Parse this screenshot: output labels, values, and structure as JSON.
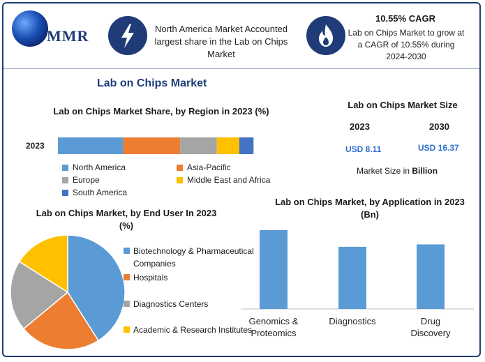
{
  "header": {
    "logo_text": "MMR",
    "highlight1": "North America Market Accounted largest share in the Lab on Chips Market",
    "cagr_title": "10.55% CAGR",
    "cagr_text": "Lab on Chips Market to grow at a CAGR of 10.55% during 2024-2030",
    "icon1": "lightning-bolt-icon",
    "icon2": "flame-icon"
  },
  "main_title": "Lab on Chips Market",
  "market_size": {
    "title": "Lab on Chips Market Size",
    "year1": "2023",
    "year2": "2030",
    "value1": "USD 8.11",
    "value2": "USD 16.37",
    "unit_prefix": "Market Size in ",
    "unit_bold": "Billion"
  },
  "chart_data": [
    {
      "type": "bar",
      "orientation": "horizontal",
      "stacked": true,
      "title": "Lab on Chips Market Share, by Region in 2023 (%)",
      "categories": [
        "2023"
      ],
      "series": [
        {
          "name": "North America",
          "values": [
            32
          ],
          "color": "#5b9bd5"
        },
        {
          "name": "Asia-Pacific",
          "values": [
            28
          ],
          "color": "#ed7d31"
        },
        {
          "name": "Europe",
          "values": [
            18
          ],
          "color": "#a5a5a5"
        },
        {
          "name": "Middle East and Africa",
          "values": [
            11
          ],
          "color": "#ffc000"
        },
        {
          "name": "South America",
          "values": [
            7
          ],
          "color": "#4472c4"
        }
      ],
      "xlim": [
        0,
        100
      ],
      "legend": "bottom"
    },
    {
      "type": "pie",
      "title": "Lab on Chips Market, by End User In 2023 (%)",
      "labels": [
        "Biotechnology & Pharmaceutical Companies",
        "Hospitals",
        "Diagnostics Centers",
        "Academic & Research Institutes"
      ],
      "values": [
        41,
        23,
        20,
        16
      ],
      "colors": [
        "#5b9bd5",
        "#ed7d31",
        "#a5a5a5",
        "#ffc000"
      ],
      "legend": "right"
    },
    {
      "type": "bar",
      "title": "Lab on Chips Market, by Application in 2023 (Bn)",
      "categories": [
        "Genomics & Proteomics",
        "Diagnostics",
        "Drug Discovery"
      ],
      "values": [
        3.3,
        2.6,
        2.7
      ],
      "color": "#5b9bd5",
      "ylim": [
        0,
        3.5
      ]
    }
  ]
}
